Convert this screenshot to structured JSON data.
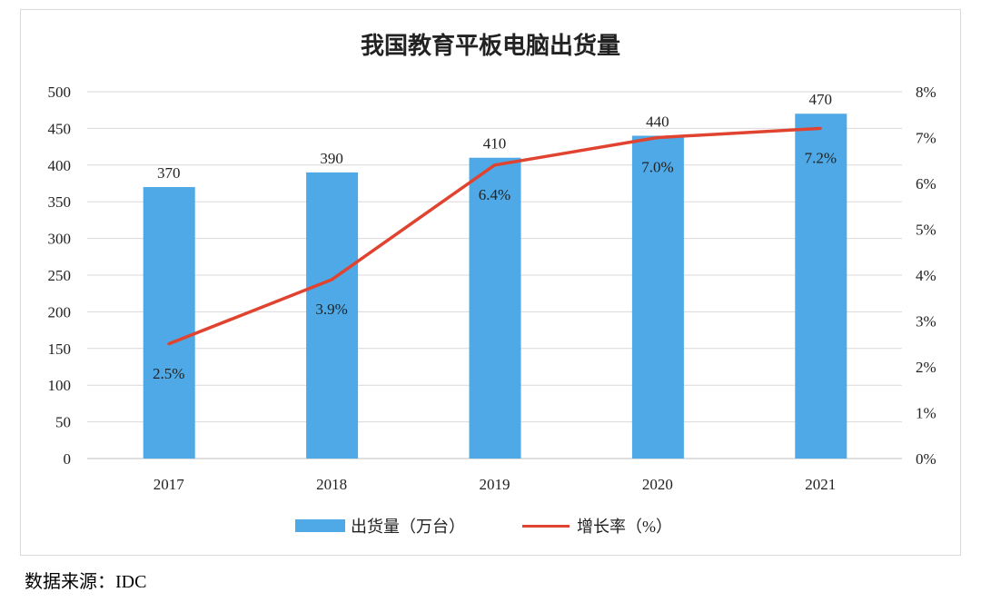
{
  "chart_data": {
    "type": "bar+line",
    "title": "我国教育平板电脑出货量",
    "categories": [
      "2017",
      "2018",
      "2019",
      "2020",
      "2021"
    ],
    "series": [
      {
        "name": "出货量（万台）",
        "type": "bar",
        "axis": "left",
        "values": [
          370,
          390,
          410,
          440,
          470
        ],
        "labels": [
          "370",
          "390",
          "410",
          "440",
          "470"
        ],
        "color": "#4EA9E6"
      },
      {
        "name": "增长率（%）",
        "type": "line",
        "axis": "right",
        "values": [
          2.5,
          3.9,
          6.4,
          7.0,
          7.2
        ],
        "labels": [
          "2.5%",
          "3.9%",
          "6.4%",
          "7.0%",
          "7.2%"
        ],
        "color": "#E0432F"
      }
    ],
    "y_left": {
      "range": [
        0,
        500
      ],
      "ticks": [
        "0",
        "50",
        "100",
        "150",
        "200",
        "250",
        "300",
        "350",
        "400",
        "450",
        "500"
      ]
    },
    "y_right": {
      "range": [
        0,
        8
      ],
      "ticks": [
        "0%",
        "1%",
        "2%",
        "3%",
        "4%",
        "5%",
        "6%",
        "7%",
        "8%"
      ]
    },
    "grid": true,
    "legend": "bottom"
  },
  "source": "数据来源：IDC"
}
